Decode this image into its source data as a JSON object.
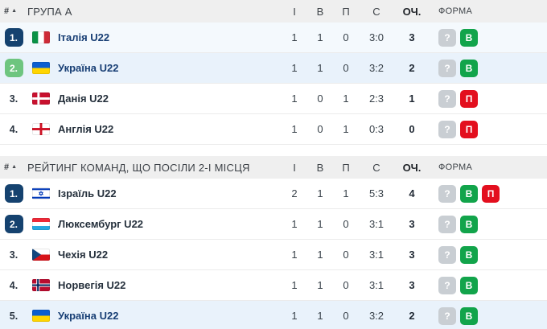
{
  "rank_header": "#",
  "sort_icon": "▲",
  "colors": {
    "rank_badge_navy": "#15426f",
    "rank_badge_green": "#6ec57f",
    "form_win_green": "#12a44b",
    "form_loss_red": "#e30f1e",
    "form_unknown_gray": "#c9ced3",
    "team_link_blue": "#173e74",
    "row_highlight_blue": "#e9f2fb",
    "header_gray": "#efefef"
  },
  "tables": [
    {
      "title": "ГРУПА А",
      "columns": {
        "played": "І",
        "wins": "В",
        "losses": "П",
        "score": "С",
        "points": "ОЧ.",
        "form": "ФОРМА"
      },
      "rows": [
        {
          "rank": "1.",
          "rank_style": "navy",
          "flag": "italy",
          "team": "Італія U22",
          "link": true,
          "row_style": "tint",
          "played": "1",
          "wins": "1",
          "losses": "0",
          "score": "3:0",
          "points": "3",
          "form": [
            {
              "label": "?",
              "result": "unknown"
            },
            {
              "label": "В",
              "result": "win"
            }
          ]
        },
        {
          "rank": "2.",
          "rank_style": "green",
          "flag": "ukraine",
          "team": "Україна U22",
          "link": true,
          "row_style": "highlight",
          "played": "1",
          "wins": "1",
          "losses": "0",
          "score": "3:2",
          "points": "2",
          "form": [
            {
              "label": "?",
              "result": "unknown"
            },
            {
              "label": "В",
              "result": "win"
            }
          ]
        },
        {
          "rank": "3.",
          "rank_style": "none",
          "flag": "denmark",
          "team": "Данія U22",
          "link": false,
          "row_style": "none",
          "played": "1",
          "wins": "0",
          "losses": "1",
          "score": "2:3",
          "points": "1",
          "form": [
            {
              "label": "?",
              "result": "unknown"
            },
            {
              "label": "П",
              "result": "loss"
            }
          ]
        },
        {
          "rank": "4.",
          "rank_style": "none",
          "flag": "england",
          "team": "Англія U22",
          "link": false,
          "row_style": "none",
          "played": "1",
          "wins": "0",
          "losses": "1",
          "score": "0:3",
          "points": "0",
          "form": [
            {
              "label": "?",
              "result": "unknown"
            },
            {
              "label": "П",
              "result": "loss"
            }
          ]
        }
      ]
    },
    {
      "title": "РЕЙТИНГ КОМАНД, ЩО ПОСІЛИ 2-І МІСЦЯ",
      "columns": {
        "played": "І",
        "wins": "В",
        "losses": "П",
        "score": "С",
        "points": "ОЧ.",
        "form": "ФОРМА"
      },
      "rows": [
        {
          "rank": "1.",
          "rank_style": "navy",
          "flag": "israel",
          "team": "Ізраїль U22",
          "link": false,
          "row_style": "none",
          "played": "2",
          "wins": "1",
          "losses": "1",
          "score": "5:3",
          "points": "4",
          "form": [
            {
              "label": "?",
              "result": "unknown"
            },
            {
              "label": "В",
              "result": "win"
            },
            {
              "label": "П",
              "result": "loss"
            }
          ]
        },
        {
          "rank": "2.",
          "rank_style": "navy",
          "flag": "luxembourg",
          "team": "Люксембург U22",
          "link": false,
          "row_style": "none",
          "played": "1",
          "wins": "1",
          "losses": "0",
          "score": "3:1",
          "points": "3",
          "form": [
            {
              "label": "?",
              "result": "unknown"
            },
            {
              "label": "В",
              "result": "win"
            }
          ]
        },
        {
          "rank": "3.",
          "rank_style": "none",
          "flag": "czechia",
          "team": "Чехія U22",
          "link": false,
          "row_style": "none",
          "played": "1",
          "wins": "1",
          "losses": "0",
          "score": "3:1",
          "points": "3",
          "form": [
            {
              "label": "?",
              "result": "unknown"
            },
            {
              "label": "В",
              "result": "win"
            }
          ]
        },
        {
          "rank": "4.",
          "rank_style": "none",
          "flag": "norway",
          "team": "Норвегія U22",
          "link": false,
          "row_style": "none",
          "played": "1",
          "wins": "1",
          "losses": "0",
          "score": "3:1",
          "points": "3",
          "form": [
            {
              "label": "?",
              "result": "unknown"
            },
            {
              "label": "В",
              "result": "win"
            }
          ]
        },
        {
          "rank": "5.",
          "rank_style": "none",
          "flag": "ukraine",
          "team": "Україна U22",
          "link": true,
          "row_style": "highlight",
          "played": "1",
          "wins": "1",
          "losses": "0",
          "score": "3:2",
          "points": "2",
          "form": [
            {
              "label": "?",
              "result": "unknown"
            },
            {
              "label": "В",
              "result": "win"
            }
          ]
        }
      ]
    }
  ]
}
